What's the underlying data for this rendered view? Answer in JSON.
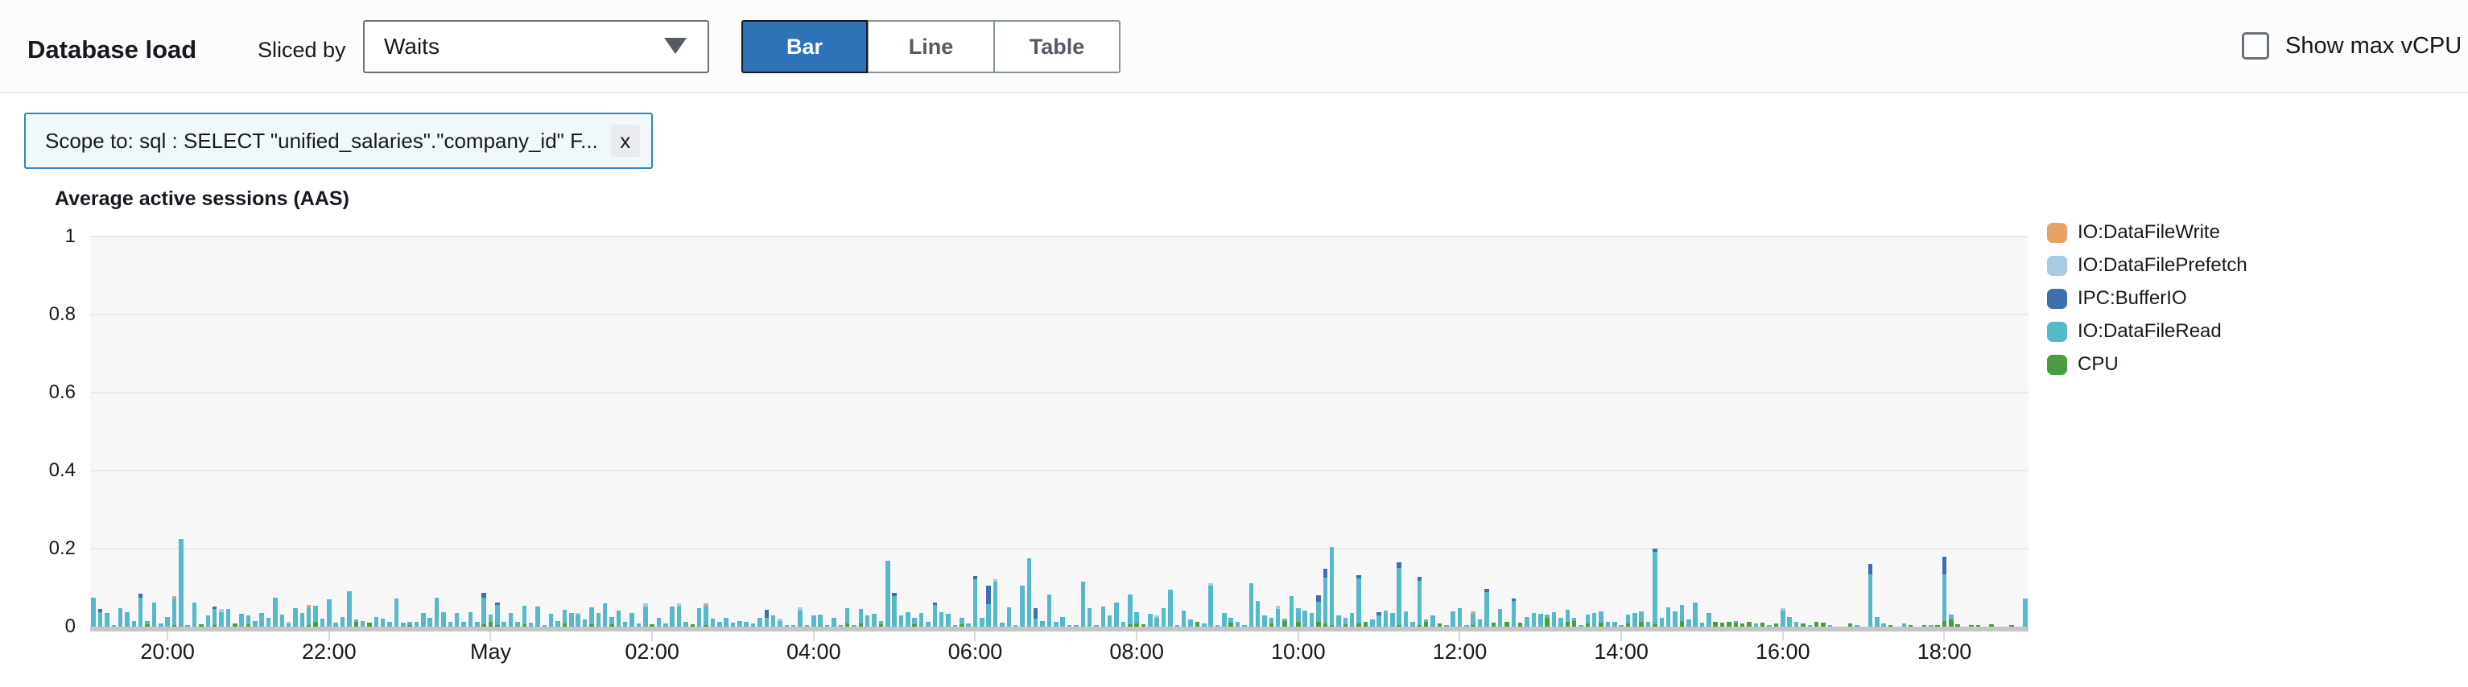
{
  "header": {
    "title": "Database load",
    "sliced_by_label": "Sliced by",
    "slice_selected": "Waits",
    "view_toggle": {
      "options": [
        "Bar",
        "Line",
        "Table"
      ],
      "selected": "Bar"
    },
    "show_max_vcpu_label": "Show max vCPU",
    "show_max_vcpu_checked": false
  },
  "filter_chip": {
    "text": "Scope to: sql : SELECT \"unified_salaries\".\"company_id\" F...",
    "close_label": "x"
  },
  "chart_data": {
    "type": "bar",
    "stacked": true,
    "title": "Average active sessions (AAS)",
    "ylabel": "Average active sessions (AAS)",
    "ylim": [
      0,
      1
    ],
    "y_ticks": [
      0,
      0.2,
      0.4,
      0.6,
      0.8,
      1
    ],
    "grid": true,
    "legend_position": "right",
    "bin_minutes": 5,
    "legend": [
      {
        "name": "IO:DataFileWrite",
        "color": "#e8a266"
      },
      {
        "name": "IO:DataFilePrefetch",
        "color": "#a6cbe2"
      },
      {
        "name": "IPC:BufferIO",
        "color": "#3b70ad"
      },
      {
        "name": "IO:DataFileRead",
        "color": "#56b9cb"
      },
      {
        "name": "CPU",
        "color": "#4a9e3f"
      }
    ],
    "stack_order_bottom_to_top": [
      "CPU",
      "IO:DataFileRead",
      "IPC:BufferIO",
      "IO:DataFilePrefetch",
      "IO:DataFileWrite"
    ],
    "colors": {
      "CPU": "#4a9e3f",
      "IO:DataFileRead": "#56b9cb",
      "IPC:BufferIO": "#3b70ad",
      "IO:DataFilePrefetch": "#a6cbe2",
      "IO:DataFileWrite": "#e8a266"
    },
    "x_ticks": [
      {
        "label": "20:00",
        "index": 11
      },
      {
        "label": "22:00",
        "index": 35
      },
      {
        "label": "May",
        "index": 59
      },
      {
        "label": "02:00",
        "index": 83
      },
      {
        "label": "04:00",
        "index": 107
      },
      {
        "label": "06:00",
        "index": 131
      },
      {
        "label": "08:00",
        "index": 155
      },
      {
        "label": "10:00",
        "index": 179
      },
      {
        "label": "12:00",
        "index": 203
      },
      {
        "label": "14:00",
        "index": 227
      },
      {
        "label": "16:00",
        "index": 251
      },
      {
        "label": "18:00",
        "index": 275
      }
    ],
    "bars_format": "[CPU, IO:DataFileRead, IPC:BufferIO, IO:DataFilePrefetch, IO:DataFileWrite] in AAS units, trailing zeros omitted",
    "bars": [
      [
        0,
        0.075
      ],
      [
        0,
        0.038,
        0.008
      ],
      [
        0,
        0.035
      ],
      [
        0,
        0.004
      ],
      [
        0,
        0.048
      ],
      [
        0,
        0.038
      ],
      [
        0,
        0.015
      ],
      [
        0,
        0.075,
        0.009
      ],
      [
        0.006,
        0.008
      ],
      [
        0,
        0.062
      ],
      [
        0,
        0.008
      ],
      [
        0,
        0.025
      ],
      [
        0.005,
        0.068,
        0,
        0,
        0.006
      ],
      [
        0,
        0.225
      ],
      [
        0,
        0.005
      ],
      [
        0,
        0.062
      ],
      [
        0.006
      ],
      [
        0,
        0.028
      ],
      [
        0.005,
        0.04,
        0.006
      ],
      [
        0,
        0.038,
        0,
        0.008
      ],
      [
        0,
        0.045
      ],
      [
        0.009
      ],
      [
        0,
        0.032
      ],
      [
        0.006,
        0.022
      ],
      [
        0,
        0.015
      ],
      [
        0,
        0.035
      ],
      [
        0,
        0.022
      ],
      [
        0,
        0.075
      ],
      [
        0,
        0.03
      ],
      [
        0,
        0.008,
        0,
        0.005
      ],
      [
        0,
        0.048
      ],
      [
        0,
        0.035
      ],
      [
        0.005,
        0.045,
        0,
        0,
        0.006
      ],
      [
        0.012,
        0.042
      ],
      [
        0,
        0.02
      ],
      [
        0,
        0.07
      ],
      [
        0,
        0.01
      ],
      [
        0,
        0.025
      ],
      [
        0,
        0.09
      ],
      [
        0.012,
        0.006
      ],
      [
        0,
        0.015
      ],
      [
        0.01
      ],
      [
        0,
        0.025
      ],
      [
        0,
        0.02
      ],
      [
        0,
        0.012
      ],
      [
        0,
        0.072
      ],
      [
        0,
        0.01
      ],
      [
        0.005,
        0.007
      ],
      [
        0,
        0.012
      ],
      [
        0,
        0.035
      ],
      [
        0,
        0.022
      ],
      [
        0,
        0.075
      ],
      [
        0,
        0.038
      ],
      [
        0,
        0.012
      ],
      [
        0,
        0.035
      ],
      [
        0,
        0.012
      ],
      [
        0,
        0.038
      ],
      [
        0,
        0.012
      ],
      [
        0.006,
        0.068,
        0.012
      ],
      [
        0.012,
        0.02
      ],
      [
        0.005,
        0.05,
        0.007
      ],
      [
        0,
        0.012
      ],
      [
        0,
        0.035
      ],
      [
        0,
        0.012
      ],
      [
        0.006,
        0.048
      ],
      [
        0,
        0.01
      ],
      [
        0,
        0.052
      ],
      [
        0,
        0.005
      ],
      [
        0,
        0.032
      ],
      [
        0,
        0.015
      ],
      [
        0.008,
        0.035
      ],
      [
        0,
        0.035
      ],
      [
        0,
        0.03,
        0,
        0.006
      ],
      [
        0,
        0.018
      ],
      [
        0.007,
        0.042
      ],
      [
        0,
        0.035
      ],
      [
        0,
        0.06
      ],
      [
        0.006,
        0.018
      ],
      [
        0,
        0.042
      ],
      [
        0,
        0.012
      ],
      [
        0,
        0.035
      ],
      [
        0,
        0.008
      ],
      [
        0,
        0.052,
        0,
        0.007
      ],
      [
        0.006
      ],
      [
        0,
        0.022
      ],
      [
        0,
        0.008
      ],
      [
        0,
        0.052
      ],
      [
        0,
        0.052,
        0,
        0.007
      ],
      [
        0,
        0.012
      ],
      [
        0.007
      ],
      [
        0,
        0.048
      ],
      [
        0.005,
        0.048,
        0,
        0,
        0.006
      ],
      [
        0,
        0.02
      ],
      [
        0,
        0.012
      ],
      [
        0,
        0.022
      ],
      [
        0,
        0.01
      ],
      [
        0,
        0.015
      ],
      [
        0,
        0.012
      ],
      [
        0,
        0.008
      ],
      [
        0,
        0.022
      ],
      [
        0,
        0.022,
        0.022
      ],
      [
        0,
        0.028
      ],
      [
        0,
        0.015,
        0,
        0.006
      ],
      [
        0,
        0.005
      ],
      [
        0,
        0.002
      ],
      [
        0,
        0.042,
        0,
        0.007
      ],
      [
        0,
        0.002
      ],
      [
        0,
        0.028
      ],
      [
        0,
        0.03
      ],
      [
        0,
        0.002
      ],
      [
        0,
        0.022
      ],
      [
        0,
        0.005
      ],
      [
        0.008,
        0.04
      ],
      [
        0,
        0.002
      ],
      [
        0.009,
        0.036
      ],
      [
        0,
        0.028
      ],
      [
        0,
        0.032
      ],
      [
        0.007,
        0.008
      ],
      [
        0,
        0.17
      ],
      [
        0,
        0.078,
        0.008
      ],
      [
        0,
        0.028
      ],
      [
        0,
        0.038
      ],
      [
        0.006,
        0.016
      ],
      [
        0,
        0.035
      ],
      [
        0,
        0.012
      ],
      [
        0,
        0.055,
        0.007
      ],
      [
        0,
        0.038
      ],
      [
        0,
        0.032
      ],
      [
        0,
        0.005
      ],
      [
        0.006,
        0.016
      ],
      [
        0,
        0.008
      ],
      [
        0,
        0.122,
        0.008
      ],
      [
        0,
        0.022
      ],
      [
        0,
        0.058,
        0.048
      ],
      [
        0,
        0.115,
        0,
        0.007
      ],
      [
        0,
        0.01
      ],
      [
        0,
        0.05
      ],
      [
        0,
        0.002
      ],
      [
        0,
        0.105
      ],
      [
        0,
        0.175
      ],
      [
        0,
        0.02,
        0.028
      ],
      [
        0,
        0.015
      ],
      [
        0,
        0.082
      ],
      [
        0,
        0.012
      ],
      [
        0,
        0.025
      ],
      [
        0,
        0.005
      ],
      [
        0,
        0.002
      ],
      [
        0,
        0.115
      ],
      [
        0,
        0.048
      ],
      [
        0,
        0.002
      ],
      [
        0,
        0.052
      ],
      [
        0,
        0.028
      ],
      [
        0,
        0.062
      ],
      [
        0,
        0.012
      ],
      [
        0.006,
        0.076
      ],
      [
        0.008,
        0.03
      ],
      [
        0.006
      ],
      [
        0,
        0.032
      ],
      [
        0,
        0.022,
        0,
        0.006
      ],
      [
        0,
        0.048
      ],
      [
        0,
        0.095
      ],
      [
        0,
        0.005
      ],
      [
        0,
        0.042
      ],
      [
        0,
        0.018
      ],
      [
        0.012
      ],
      [
        0,
        0.008
      ],
      [
        0,
        0.105,
        0,
        0.007
      ],
      [
        0,
        0.005
      ],
      [
        0,
        0.035
      ],
      [
        0.01,
        0.012
      ],
      [
        0,
        0.012
      ],
      [
        0,
        0.005
      ],
      [
        0,
        0.112
      ],
      [
        0,
        0.065
      ],
      [
        0,
        0.028
      ],
      [
        0.008,
        0.014
      ],
      [
        0,
        0.046,
        0,
        0.007
      ],
      [
        0.014,
        0.006
      ],
      [
        0,
        0.078
      ],
      [
        0.012,
        0.036
      ],
      [
        0,
        0.042
      ],
      [
        0,
        0.035
      ],
      [
        0.012,
        0.052,
        0.016
      ],
      [
        0.008,
        0.118,
        0.022
      ],
      [
        0.005,
        0.2
      ],
      [
        0,
        0.028
      ],
      [
        0.006,
        0.016
      ],
      [
        0,
        0.035
      ],
      [
        0.008,
        0.115,
        0.008
      ],
      [
        0.012
      ],
      [
        0,
        0.018
      ],
      [
        0,
        0.028,
        0.01
      ],
      [
        0,
        0.042
      ],
      [
        0,
        0.035
      ],
      [
        0.005,
        0.145,
        0.014
      ],
      [
        0,
        0.04
      ],
      [
        0,
        0.012
      ],
      [
        0.005,
        0.112,
        0.01
      ],
      [
        0.012,
        0.006
      ],
      [
        0,
        0.028
      ],
      [
        0.008
      ],
      [
        0,
        0.002
      ],
      [
        0,
        0.04
      ],
      [
        0,
        0.048
      ],
      [
        0,
        0.002
      ],
      [
        0.005,
        0.028,
        0,
        0,
        0.006
      ],
      [
        0,
        0.018
      ],
      [
        0,
        0.088,
        0.009
      ],
      [
        0.01
      ],
      [
        0,
        0.045
      ],
      [
        0.012
      ],
      [
        0,
        0.065,
        0.007
      ],
      [
        0.01
      ],
      [
        0,
        0.025
      ],
      [
        0,
        0.035
      ],
      [
        0,
        0.032
      ],
      [
        0.022,
        0.008
      ],
      [
        0,
        0.038
      ],
      [
        0,
        0.022
      ],
      [
        0.012,
        0.032
      ],
      [
        0.014,
        0.008
      ],
      [
        0,
        0.005
      ],
      [
        0.008,
        0.024
      ],
      [
        0,
        0.035
      ],
      [
        0.01,
        0.03
      ],
      [
        0,
        0.012
      ],
      [
        0,
        0.012
      ],
      [
        0,
        0.005
      ],
      [
        0.008,
        0.024
      ],
      [
        0,
        0.035
      ],
      [
        0.012,
        0.028
      ],
      [
        0,
        0.012
      ],
      [
        0.006,
        0.185,
        0.01
      ],
      [
        0,
        0.022
      ],
      [
        0,
        0.05
      ],
      [
        0,
        0.04
      ],
      [
        0.014,
        0.041
      ],
      [
        0,
        0.018
      ],
      [
        0,
        0.062
      ],
      [
        0,
        0.01
      ],
      [
        0,
        0.035
      ],
      [
        0.012
      ],
      [
        0.01
      ],
      [
        0.012
      ],
      [
        0.01,
        0.005
      ],
      [
        0.008
      ],
      [
        0.012
      ],
      [
        0,
        0.008
      ],
      [
        0.01
      ],
      [
        0,
        0.002
      ],
      [
        0.008
      ],
      [
        0,
        0.042,
        0,
        0.006
      ],
      [
        0,
        0.025
      ],
      [
        0,
        0.012
      ],
      [
        0.008
      ],
      [
        0,
        0.002
      ],
      [
        0.012
      ],
      [
        0.01
      ],
      [
        0,
        0.002
      ],
      [],
      [],
      [
        0.008
      ],
      [
        0,
        0.002
      ],
      [],
      [
        0,
        0.135,
        0.026
      ],
      [
        0,
        0.025
      ],
      [
        0,
        0.008
      ],
      [
        0.005
      ],
      [],
      [
        0,
        0.008
      ],
      [
        0.004
      ],
      [],
      [
        0.005
      ],
      [
        0,
        0.002
      ],
      [
        0.004
      ],
      [
        0.015,
        0.12,
        0.045
      ],
      [
        0.018,
        0.012
      ],
      [
        0.006
      ],
      [],
      [
        0.005
      ],
      [
        0.005
      ],
      [],
      [
        0.007
      ],
      [],
      [],
      [
        0.004
      ],
      [],
      [
        0,
        0.072
      ]
    ]
  }
}
